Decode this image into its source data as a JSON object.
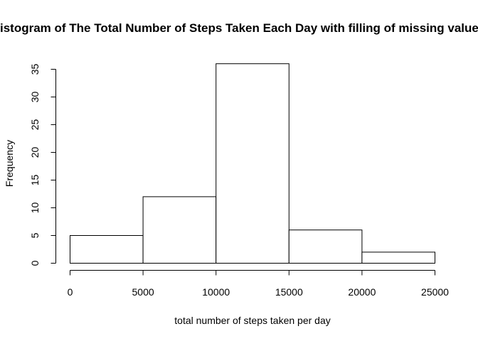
{
  "chart_data": {
    "type": "bar",
    "title": "Histogram of The Total Number of Steps Taken Each Day with filling of missing values",
    "xlabel": "total number of steps taken per day",
    "ylabel": "Frequency",
    "bins": [
      {
        "from": 0,
        "to": 5000,
        "count": 5
      },
      {
        "from": 5000,
        "to": 10000,
        "count": 12
      },
      {
        "from": 10000,
        "to": 15000,
        "count": 36
      },
      {
        "from": 15000,
        "to": 20000,
        "count": 6
      },
      {
        "from": 20000,
        "to": 25000,
        "count": 2
      }
    ],
    "xlim": [
      0,
      25000
    ],
    "ylim": [
      0,
      36
    ],
    "x_ticks": [
      "0",
      "5000",
      "10000",
      "15000",
      "20000",
      "25000"
    ],
    "y_ticks": [
      "0",
      "5",
      "10",
      "15",
      "20",
      "25",
      "30",
      "35"
    ],
    "grid": false,
    "bar_fill": "#ffffff",
    "bar_stroke": "#000000"
  }
}
